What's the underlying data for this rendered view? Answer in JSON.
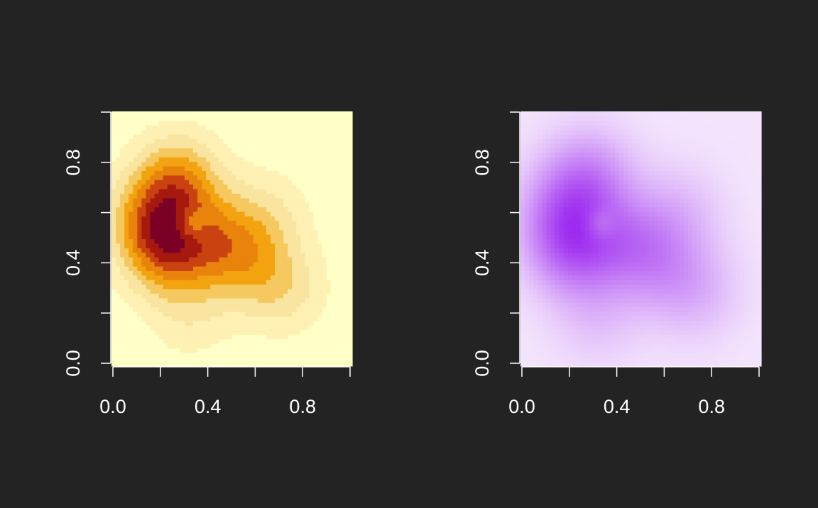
{
  "page": {
    "background": "#232323",
    "axis_color": "#ffffff"
  },
  "chart_data": [
    {
      "type": "heatmap",
      "title": "",
      "xlabel": "",
      "ylabel": "",
      "xlim": [
        0.0,
        1.0
      ],
      "ylim": [
        0.0,
        1.0
      ],
      "x_ticks": [
        0.0,
        0.2,
        0.4,
        0.6,
        0.8,
        1.0
      ],
      "y_ticks": [
        0.0,
        0.2,
        0.4,
        0.6,
        0.8,
        1.0
      ],
      "x_tick_labels": [
        "0.0",
        "",
        "0.4",
        "",
        "0.8",
        ""
      ],
      "y_tick_labels": [
        "0.0",
        "",
        "0.4",
        "",
        "0.8",
        ""
      ],
      "grid": false,
      "legend": "none",
      "shading": "stepped",
      "levels": 9,
      "color_low": "#ffffc8",
      "color_high": "#7a0026",
      "palette": [
        "#ffffc8",
        "#fff0b3",
        "#fae5a0",
        "#f5c95f",
        "#f2a30f",
        "#e8830c",
        "#c94210",
        "#a5190e",
        "#7a0026"
      ],
      "density_peaks": [
        {
          "x": 0.22,
          "y": 0.46,
          "intensity": 1.0
        },
        {
          "x": 0.28,
          "y": 0.74,
          "intensity": 0.8
        },
        {
          "x": 0.18,
          "y": 0.6,
          "intensity": 0.75
        },
        {
          "x": 0.42,
          "y": 0.5,
          "intensity": 0.55
        },
        {
          "x": 0.55,
          "y": 0.42,
          "intensity": 0.55
        },
        {
          "x": 0.72,
          "y": 0.3,
          "intensity": 0.45
        },
        {
          "x": 0.65,
          "y": 0.6,
          "intensity": 0.35
        },
        {
          "x": 0.32,
          "y": 0.2,
          "intensity": 0.3
        }
      ],
      "density_hole": {
        "x": 0.33,
        "y": 0.56,
        "intensity": 0.45
      }
    },
    {
      "type": "heatmap",
      "title": "",
      "xlabel": "",
      "ylabel": "",
      "xlim": [
        0.0,
        1.0
      ],
      "ylim": [
        0.0,
        1.0
      ],
      "x_ticks": [
        0.0,
        0.2,
        0.4,
        0.6,
        0.8,
        1.0
      ],
      "y_ticks": [
        0.0,
        0.2,
        0.4,
        0.6,
        0.8,
        1.0
      ],
      "x_tick_labels": [
        "0.0",
        "",
        "0.4",
        "",
        "0.8",
        ""
      ],
      "y_tick_labels": [
        "0.0",
        "",
        "0.4",
        "",
        "0.8",
        ""
      ],
      "grid": false,
      "legend": "none",
      "shading": "smooth",
      "color_low": "#f6eafd",
      "color_high": "#9d2af0",
      "density_peaks": [
        {
          "x": 0.22,
          "y": 0.46,
          "intensity": 1.0
        },
        {
          "x": 0.28,
          "y": 0.74,
          "intensity": 0.8
        },
        {
          "x": 0.18,
          "y": 0.6,
          "intensity": 0.75
        },
        {
          "x": 0.42,
          "y": 0.5,
          "intensity": 0.55
        },
        {
          "x": 0.55,
          "y": 0.42,
          "intensity": 0.55
        },
        {
          "x": 0.72,
          "y": 0.3,
          "intensity": 0.45
        },
        {
          "x": 0.65,
          "y": 0.6,
          "intensity": 0.35
        },
        {
          "x": 0.32,
          "y": 0.2,
          "intensity": 0.3
        }
      ],
      "density_hole": {
        "x": 0.33,
        "y": 0.56,
        "intensity": 0.45
      }
    }
  ]
}
